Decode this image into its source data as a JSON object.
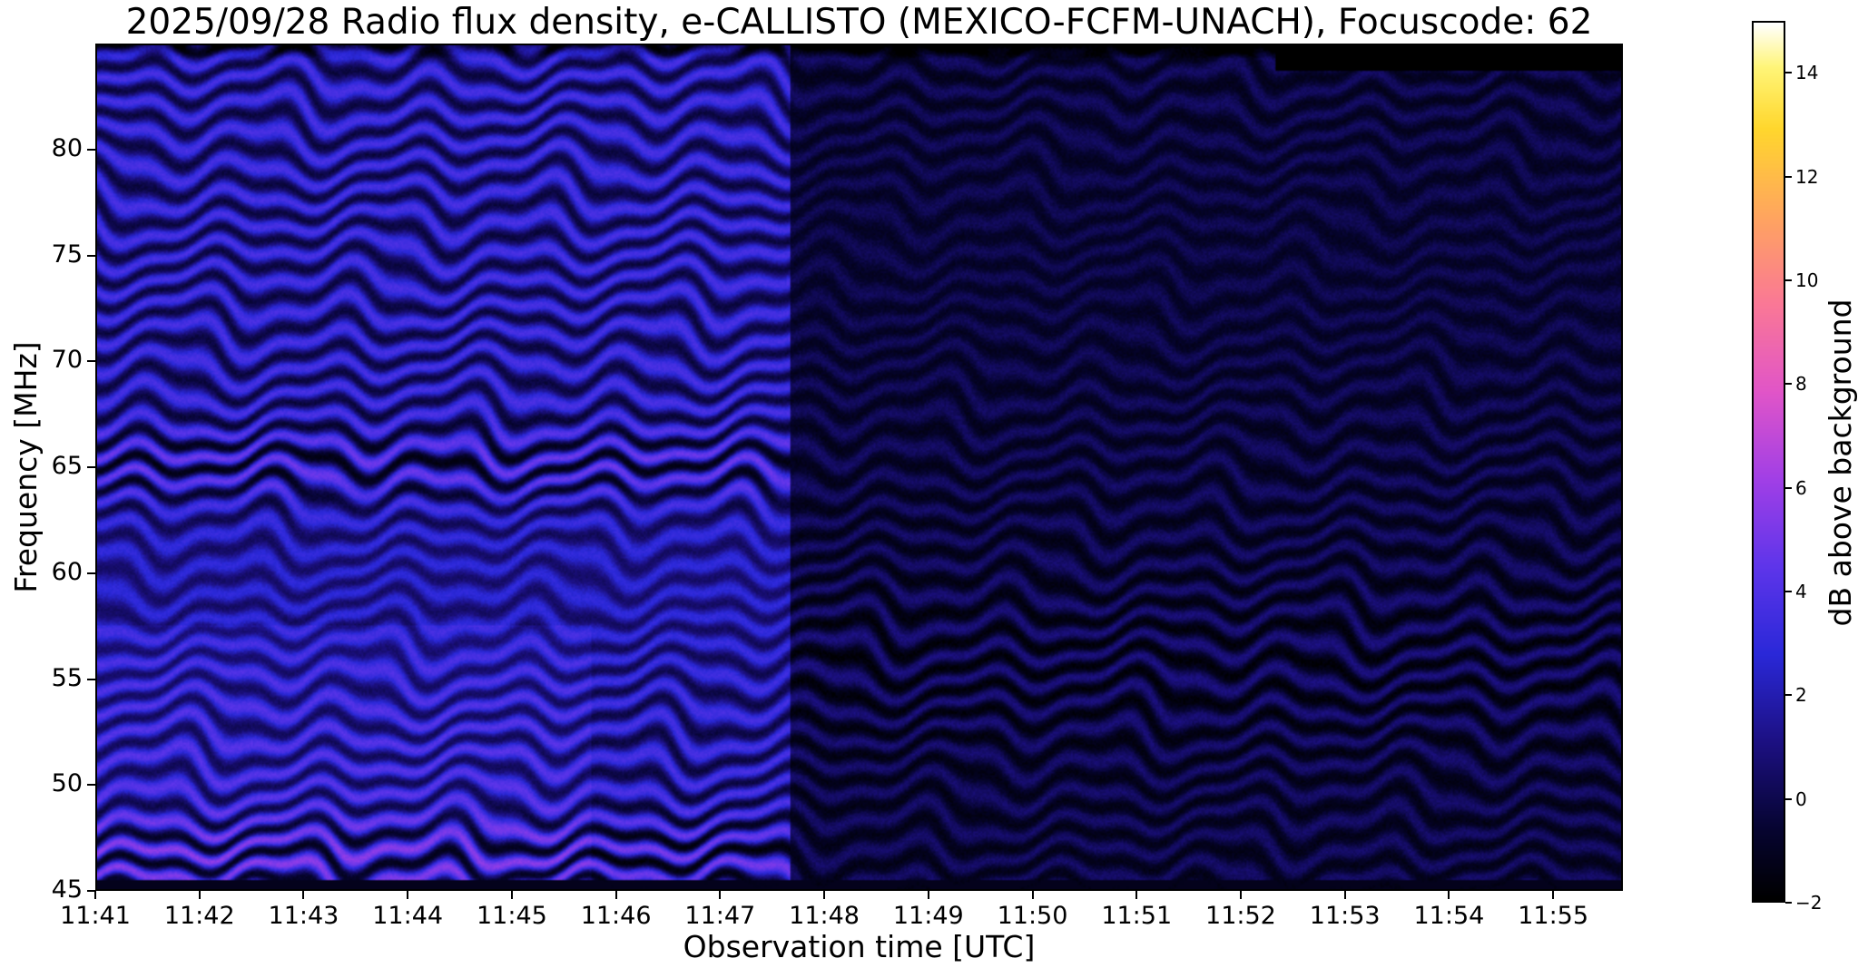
{
  "chart_data": {
    "type": "heatmap",
    "title": "2025/09/28  Radio flux density, e-CALLISTO (MEXICO-FCFM-UNACH), Focuscode: 62",
    "xlabel": "Observation time [UTC]",
    "ylabel": "Frequency [MHz]",
    "colorbar_label": "dB above background",
    "x_tick_labels": [
      "11:41",
      "11:42",
      "11:43",
      "11:44",
      "11:45",
      "11:46",
      "11:47",
      "11:48",
      "11:49",
      "11:50",
      "11:51",
      "11:52",
      "11:53",
      "11:54",
      "11:55"
    ],
    "x_tick_minutes": [
      0,
      1,
      2,
      3,
      4,
      5,
      6,
      7,
      8,
      9,
      10,
      11,
      12,
      13,
      14
    ],
    "x_range_minutes": [
      0,
      14.67
    ],
    "y_ticks": [
      45,
      50,
      55,
      60,
      65,
      70,
      75,
      80
    ],
    "y_range_mhz": [
      45,
      85
    ],
    "value_range_db": [
      -2,
      15
    ],
    "colorbar_ticks": [
      -2,
      0,
      2,
      4,
      6,
      8,
      10,
      12,
      14
    ],
    "colorbar_tick_labels": [
      "−2",
      "0",
      "2",
      "4",
      "6",
      "8",
      "10",
      "12",
      "14"
    ],
    "grid": false,
    "legend": "none",
    "colormap_stops": [
      {
        "pos": 0.0,
        "hex": "#000000"
      },
      {
        "pos": 0.08,
        "hex": "#060430"
      },
      {
        "pos": 0.18,
        "hex": "#1c1082"
      },
      {
        "pos": 0.28,
        "hex": "#2a28d8"
      },
      {
        "pos": 0.38,
        "hex": "#5e35ea"
      },
      {
        "pos": 0.48,
        "hex": "#a13fe6"
      },
      {
        "pos": 0.58,
        "hex": "#e155c8"
      },
      {
        "pos": 0.68,
        "hex": "#fa7896"
      },
      {
        "pos": 0.78,
        "hex": "#ffa55f"
      },
      {
        "pos": 0.88,
        "hex": "#ffd72d"
      },
      {
        "pos": 0.95,
        "hex": "#fff578"
      },
      {
        "pos": 1.0,
        "hex": "#ffffff"
      }
    ],
    "pattern": {
      "description": "Wavy horizontal interference fringes across full band; brighter blue segment 11:41-11:47.7, much darker navy segment 11:47.7-end, solid black data-gap bar along top edge from ~11:52.4 to right edge, thin dark line along bottom edge",
      "fringe_period_mhz": 1.35,
      "fringe_warp": [
        {
          "amplitude": 0.4,
          "period_min": 1.5,
          "y_coupling": 0.45,
          "phase": 0.0
        },
        {
          "amplitude": 0.2,
          "period_min": 0.65,
          "y_coupling": 0.15,
          "phase": 2.1
        },
        {
          "amplitude": 0.25,
          "period_min": 4.2,
          "y_coupling": 0.9,
          "phase": 4.4
        }
      ],
      "noise_db": 0.6,
      "segments": [
        {
          "start_min": 0.0,
          "end_min": 6.67,
          "base_db": 1.7,
          "ripple_db": 2.0
        },
        {
          "start_min": 6.67,
          "end_min": 14.67,
          "base_db": -0.4,
          "ripple_db": 0.9
        }
      ],
      "left_bright_patch": {
        "end_min": 4.75,
        "below_mhz": 57.5,
        "extra_db": 0.5
      },
      "left_enhanced_rows_mhz": [
        {
          "mhz": 65.0,
          "gain": 0.7,
          "width": 2.8
        },
        {
          "mhz": 46.5,
          "gain": 0.7,
          "width": 3.5
        }
      ],
      "left_dim_band": {
        "mhz": 59.5,
        "depth": 0.4,
        "width": 18
      },
      "right_enhanced_row": {
        "mhz": 55.5,
        "gain": 0.5,
        "width": 16
      },
      "right_dim_band": {
        "mhz": 75.0,
        "depth": 0.4,
        "width": 60
      },
      "edge_dark_top_mhz": 84.4,
      "edge_dark_bottom_mhz": 45.35,
      "data_gap": {
        "start_min": 11.35,
        "bottom_mhz": 83.8
      }
    }
  }
}
